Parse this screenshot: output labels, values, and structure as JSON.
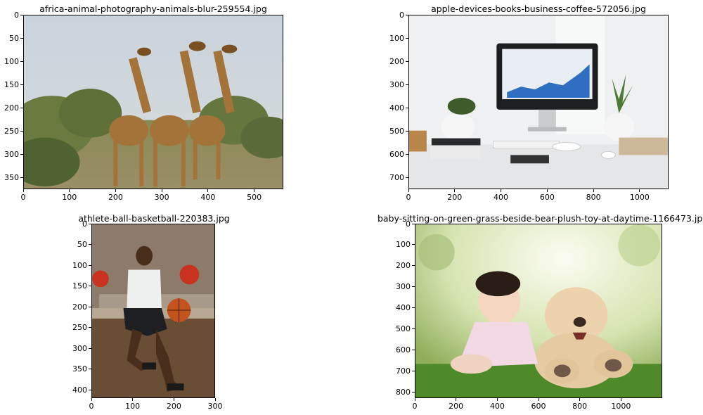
{
  "panels": [
    {
      "title": "africa-animal-photography-animals-blur-259554.jpg",
      "photo_icon": "giraffes-photo",
      "x_ticks": [
        0,
        100,
        200,
        300,
        400,
        500
      ],
      "x_range": [
        0,
        563
      ],
      "y_ticks": [
        0,
        50,
        100,
        150,
        200,
        250,
        300,
        350
      ],
      "y_range": [
        0,
        375
      ]
    },
    {
      "title": "apple-devices-books-business-coffee-572056.jpg",
      "photo_icon": "office-desk-photo",
      "x_ticks": [
        0,
        200,
        400,
        600,
        800,
        1000
      ],
      "x_range": [
        0,
        1125
      ],
      "y_ticks": [
        0,
        100,
        200,
        300,
        400,
        500,
        600,
        700
      ],
      "y_range": [
        0,
        750
      ]
    },
    {
      "title": "athlete-ball-basketball-220383.jpg",
      "photo_icon": "basketball-player-photo",
      "x_ticks": [
        0,
        100,
        200,
        300
      ],
      "x_range": [
        0,
        300
      ],
      "y_ticks": [
        0,
        50,
        100,
        150,
        200,
        250,
        300,
        350,
        400
      ],
      "y_range": [
        0,
        420
      ]
    },
    {
      "title": "baby-sitting-on-green-grass-beside-bear-plush-toy-at-daytime-1166473.jpg",
      "photo_icon": "baby-teddy-bear-photo",
      "x_ticks": [
        0,
        200,
        400,
        600,
        800,
        1000
      ],
      "x_range": [
        0,
        1200
      ],
      "y_ticks": [
        0,
        100,
        200,
        300,
        400,
        500,
        600,
        700,
        800
      ],
      "y_range": [
        0,
        830
      ]
    }
  ]
}
